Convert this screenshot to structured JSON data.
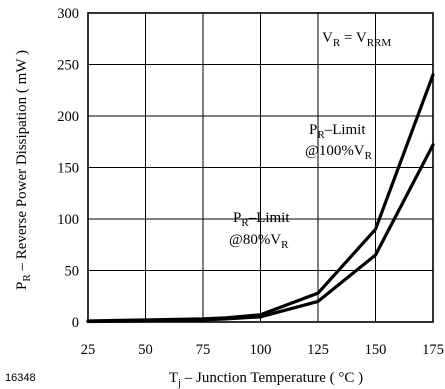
{
  "chart_data": {
    "type": "line",
    "title": "",
    "xlabel_main": "T",
    "xlabel_sub": "j",
    "xlabel_rest": " – Junction Temperature ( °C )",
    "ylabel_main": "P",
    "ylabel_sub": "R",
    "ylabel_rest": " – Reverse Power Dissipation ( mW )",
    "xlim": [
      25,
      175
    ],
    "ylim": [
      0,
      300
    ],
    "x_ticks": [
      25,
      50,
      75,
      100,
      125,
      150,
      175
    ],
    "y_ticks": [
      0,
      50,
      100,
      150,
      200,
      250,
      300
    ],
    "grid": true,
    "series": [
      {
        "name": "PR–Limit @100%VR",
        "x": [
          25,
          50,
          75,
          85,
          100,
          125,
          150,
          175
        ],
        "y": [
          1,
          2,
          3,
          4,
          7,
          28,
          90,
          240
        ]
      },
      {
        "name": "PR–Limit @80%VR",
        "x": [
          25,
          50,
          75,
          85,
          100,
          125,
          150,
          175
        ],
        "y": [
          0.5,
          1,
          2,
          3,
          5,
          20,
          65,
          172
        ]
      }
    ],
    "annotations": {
      "condition": {
        "v1": "V",
        "s1": "R",
        "eq": " = V",
        "s2": "RRM"
      },
      "label_100": {
        "line1_main": "P",
        "line1_sub": "R",
        "line1_rest": "–Limit",
        "line2_main": "@100%V",
        "line2_sub": "R"
      },
      "label_80": {
        "line1_main": "P",
        "line1_sub": "R",
        "line1_rest": "–Limit",
        "line2_main": "@80%V",
        "line2_sub": "R"
      }
    },
    "figure_code": "16348"
  }
}
